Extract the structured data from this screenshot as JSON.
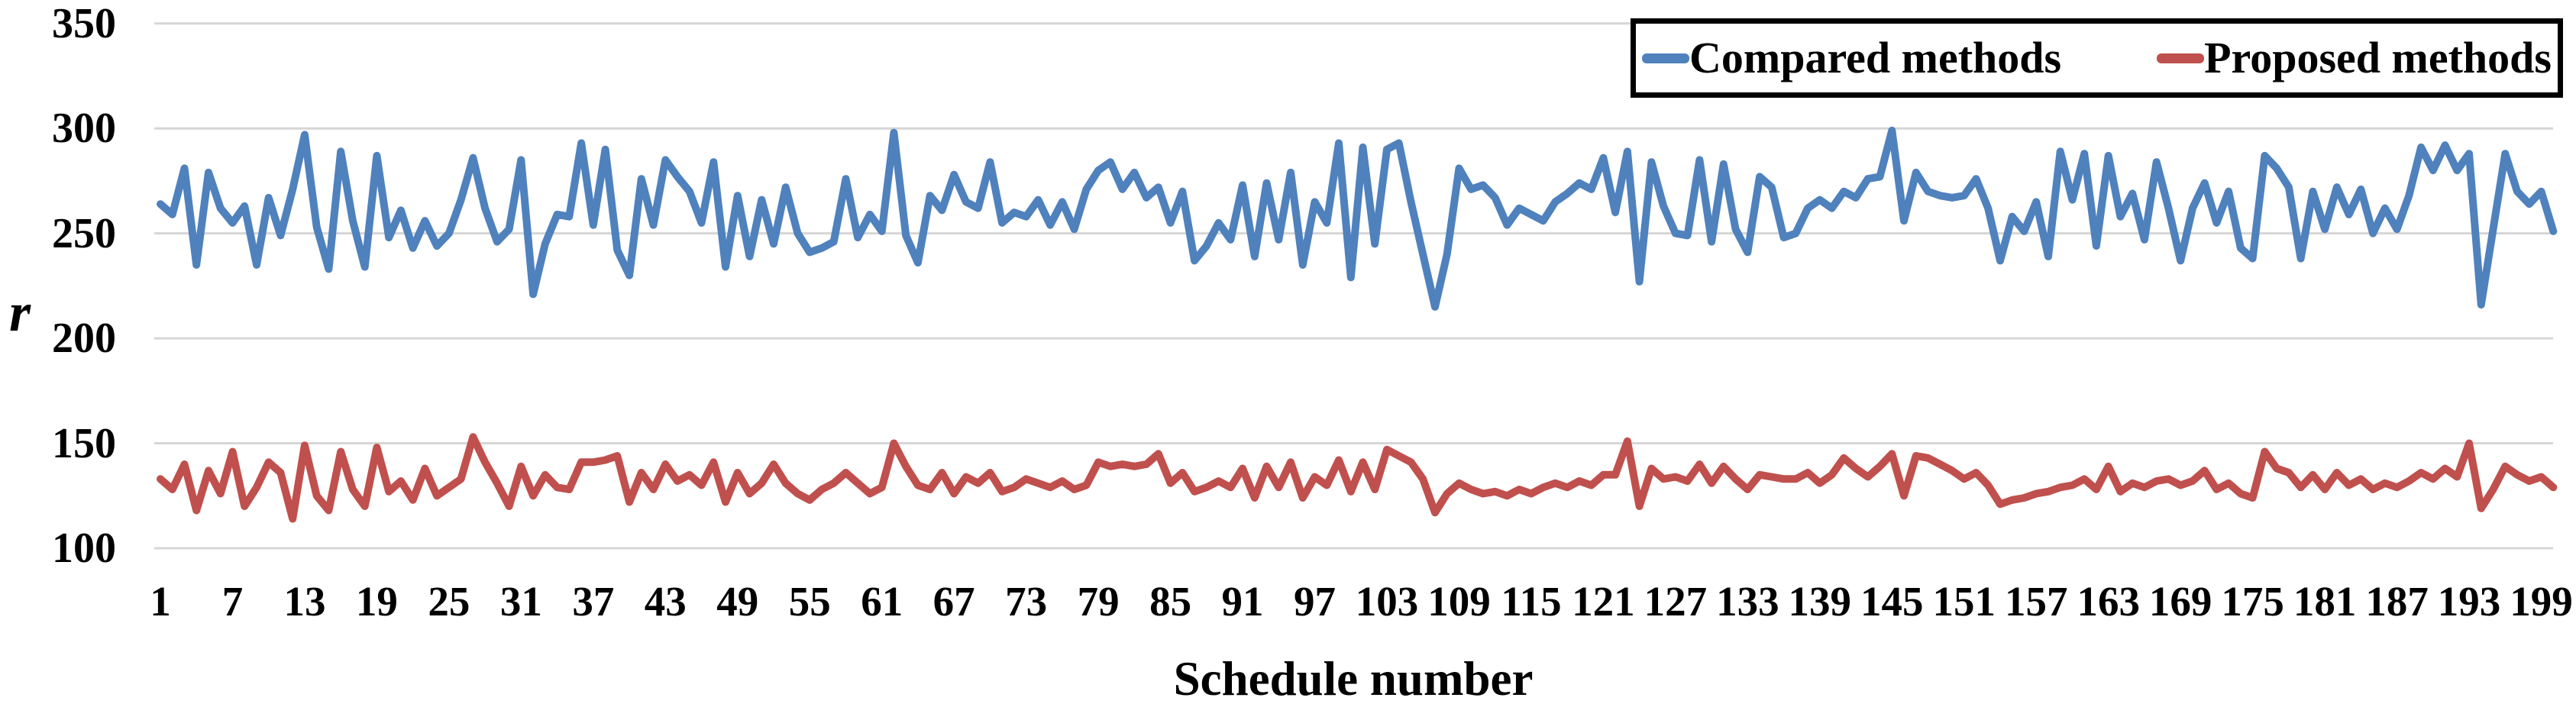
{
  "chart_data": {
    "type": "line",
    "title": "",
    "xlabel": "Schedule number",
    "ylabel": "r",
    "x_range": [
      1,
      200
    ],
    "ylim": [
      100,
      350
    ],
    "yticks": [
      100,
      150,
      200,
      250,
      300,
      350
    ],
    "xticks": [
      1,
      7,
      13,
      19,
      25,
      31,
      37,
      43,
      49,
      55,
      61,
      67,
      73,
      79,
      85,
      91,
      97,
      103,
      109,
      115,
      121,
      127,
      133,
      139,
      145,
      151,
      157,
      163,
      169,
      175,
      181,
      187,
      193,
      199
    ],
    "grid": "horizontal",
    "grid_color": "#D6D6D6",
    "legend_position": "top-right",
    "series": [
      {
        "name": "Compared methods",
        "color": "#4F81BD",
        "values": [
          264,
          259,
          281,
          235,
          279,
          262,
          255,
          263,
          235,
          267,
          249,
          271,
          297,
          253,
          233,
          289,
          256,
          234,
          287,
          248,
          261,
          243,
          256,
          244,
          250,
          266,
          286,
          262,
          246,
          252,
          285,
          221,
          245,
          259,
          258,
          293,
          254,
          290,
          242,
          230,
          276,
          254,
          285,
          277,
          270,
          255,
          284,
          234,
          268,
          239,
          266,
          245,
          272,
          250,
          241,
          243,
          246,
          276,
          248,
          259,
          251,
          298,
          249,
          236,
          268,
          261,
          278,
          265,
          262,
          284,
          255,
          260,
          258,
          266,
          254,
          265,
          252,
          271,
          280,
          284,
          271,
          279,
          267,
          272,
          255,
          270,
          237,
          244,
          255,
          247,
          273,
          239,
          274,
          247,
          279,
          235,
          265,
          255,
          293,
          229,
          291,
          245,
          290,
          293,
          265,
          240,
          215,
          240,
          281,
          271,
          273,
          267,
          254,
          262,
          259,
          256,
          265,
          269,
          274,
          271,
          286,
          260,
          289,
          227,
          284,
          263,
          250,
          249,
          285,
          246,
          283,
          252,
          241,
          277,
          272,
          248,
          250,
          262,
          266,
          262,
          270,
          267,
          276,
          277,
          299,
          256,
          279,
          270,
          268,
          267,
          268,
          276,
          262,
          237,
          258,
          251,
          265,
          239,
          289,
          266,
          288,
          244,
          287,
          258,
          269,
          247,
          284,
          262,
          237,
          262,
          274,
          255,
          270,
          243,
          238,
          287,
          281,
          272,
          238,
          270,
          252,
          272,
          259,
          271,
          250,
          262,
          252,
          268,
          291,
          280,
          292,
          280,
          288,
          216,
          252,
          288,
          270,
          264,
          270,
          251
        ]
      },
      {
        "name": "Proposed methods",
        "color": "#C0504D",
        "values": [
          133,
          128,
          140,
          118,
          137,
          126,
          146,
          120,
          129,
          141,
          136,
          114,
          149,
          125,
          118,
          146,
          128,
          120,
          148,
          127,
          132,
          123,
          138,
          125,
          129,
          133,
          153,
          141,
          131,
          120,
          139,
          125,
          135,
          129,
          128,
          141,
          141,
          142,
          144,
          122,
          136,
          128,
          140,
          132,
          135,
          130,
          141,
          122,
          136,
          126,
          131,
          140,
          131,
          126,
          123,
          128,
          131,
          136,
          131,
          126,
          129,
          150,
          139,
          130,
          128,
          136,
          126,
          134,
          131,
          136,
          127,
          129,
          133,
          131,
          129,
          132,
          128,
          130,
          141,
          139,
          140,
          139,
          140,
          145,
          131,
          136,
          127,
          129,
          132,
          129,
          138,
          124,
          139,
          129,
          141,
          124,
          134,
          130,
          142,
          127,
          141,
          128,
          147,
          144,
          141,
          133,
          117,
          126,
          131,
          128,
          126,
          127,
          125,
          128,
          126,
          129,
          131,
          129,
          132,
          130,
          135,
          135,
          151,
          120,
          138,
          133,
          134,
          132,
          140,
          131,
          139,
          133,
          128,
          135,
          134,
          133,
          133,
          136,
          131,
          135,
          143,
          138,
          134,
          139,
          145,
          125,
          144,
          143,
          140,
          137,
          133,
          136,
          130,
          121,
          123,
          124,
          126,
          127,
          129,
          130,
          133,
          128,
          139,
          127,
          131,
          129,
          132,
          133,
          130,
          132,
          137,
          128,
          131,
          126,
          124,
          146,
          138,
          136,
          129,
          135,
          128,
          136,
          130,
          133,
          128,
          131,
          129,
          132,
          136,
          133,
          138,
          134,
          150,
          119,
          128,
          139,
          135,
          132,
          134,
          129
        ]
      }
    ]
  },
  "legend": {
    "items": [
      {
        "label": "Compared methods",
        "color": "#4F81BD"
      },
      {
        "label": "Proposed methods",
        "color": "#C0504D"
      }
    ]
  }
}
